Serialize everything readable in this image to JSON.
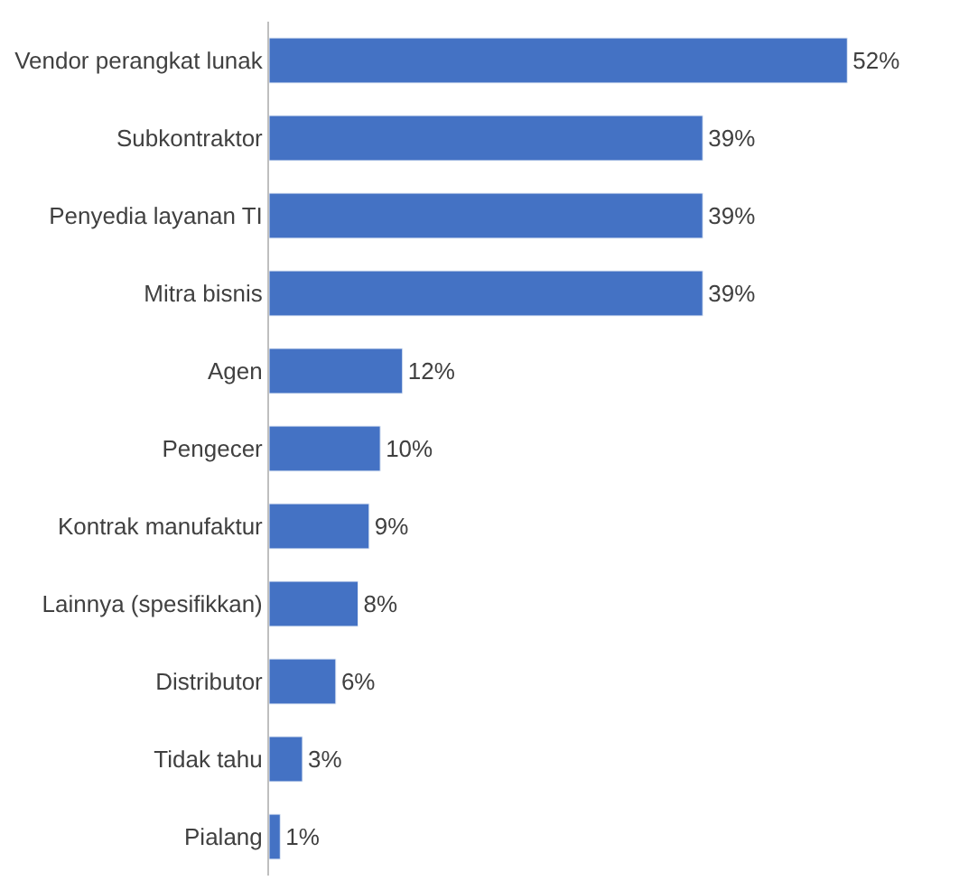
{
  "chart_data": {
    "type": "bar",
    "orientation": "horizontal",
    "color": "#4472c4",
    "categories": [
      "Vendor perangkat lunak",
      "Subkontraktor",
      "Penyedia layanan TI",
      "Mitra bisnis",
      "Agen",
      "Pengecer",
      "Kontrak manufaktur",
      "Lainnya (spesifikkan)",
      "Distributor",
      "Tidak tahu",
      "Pialang"
    ],
    "values": [
      52,
      39,
      39,
      39,
      12,
      10,
      9,
      8,
      6,
      3,
      1
    ],
    "value_labels": [
      "52%",
      "39%",
      "39%",
      "39%",
      "12%",
      "10%",
      "9%",
      "8%",
      "6%",
      "3%",
      "1%"
    ],
    "data_labels": true
  }
}
